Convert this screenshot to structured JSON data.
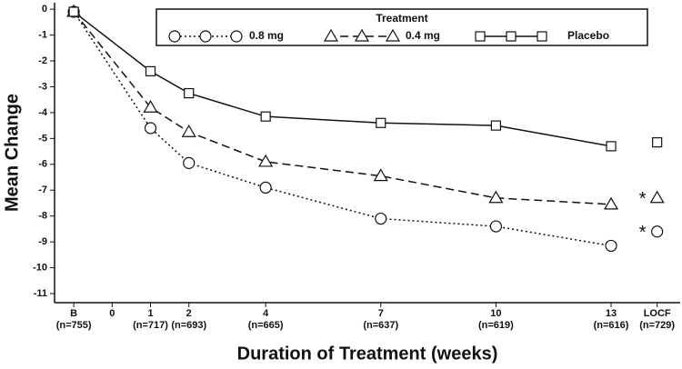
{
  "chart_data": {
    "type": "line",
    "ylabel": "Mean Change",
    "xlabel": "Duration of Treatment (weeks)",
    "legend_title": "Treatment",
    "legend_position": "top",
    "x": [
      -1,
      1,
      2,
      4,
      7,
      10,
      13
    ],
    "xlim": [
      -1.5,
      14.8
    ],
    "xticks": [
      {
        "value": -1,
        "label": "B"
      },
      0,
      1,
      2,
      4,
      7,
      10,
      13,
      {
        "value": 14.2,
        "label": "LOCF"
      }
    ],
    "sample_sizes": [
      "(n=755)",
      null,
      "(n=717)",
      "(n=693)",
      "(n=665)",
      "(n=637)",
      "(n=619)",
      "(n=616)",
      "(n=729)"
    ],
    "ylim": [
      -11.35,
      0.25
    ],
    "yticks": [
      0,
      -1,
      -2,
      -3,
      -4,
      -5,
      -6,
      -7,
      -8,
      -9,
      -10,
      -11
    ],
    "series": [
      {
        "name": "0.8 mg",
        "color": "#111111",
        "dash": "dotted",
        "marker": "circle",
        "values": [
          -0.1,
          -4.6,
          -5.95,
          -6.9,
          -8.1,
          -8.4,
          -9.15
        ],
        "locf": -8.6,
        "annotation": "*"
      },
      {
        "name": "0.4 mg",
        "color": "#111111",
        "dash": "dashed",
        "marker": "triangle",
        "values": [
          -0.1,
          -3.8,
          -4.75,
          -5.9,
          -6.45,
          -7.3,
          -7.55
        ],
        "locf": -7.3,
        "annotation": "*"
      },
      {
        "name": "Placebo",
        "color": "#111111",
        "dash": "solid",
        "marker": "square",
        "values": [
          -0.1,
          -2.4,
          -3.25,
          -4.15,
          -4.4,
          -4.5,
          -5.3
        ],
        "locf": -5.15
      }
    ]
  }
}
